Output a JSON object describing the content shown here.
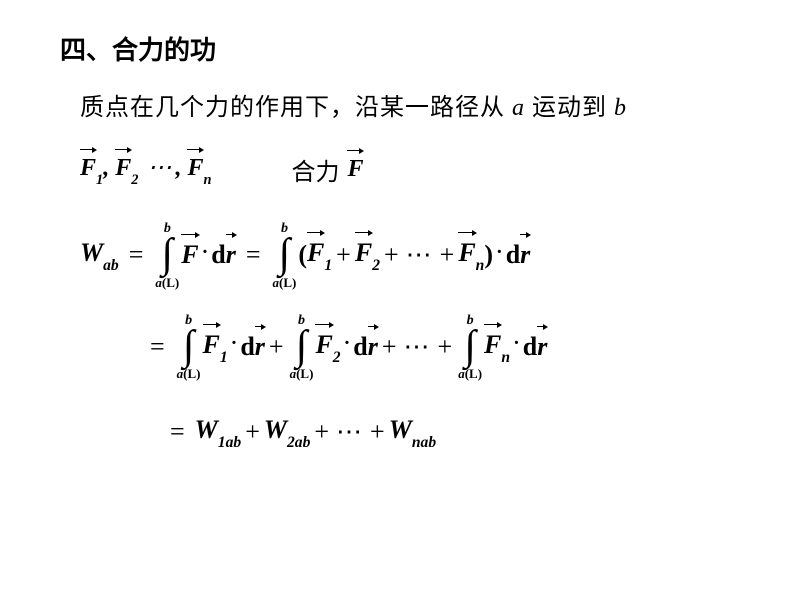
{
  "title": "四、合力的功",
  "intro_pre": "质点在几个力的作用下，沿某一路径从 ",
  "intro_a": "a",
  "intro_mid": " 运动到 ",
  "intro_b": "b",
  "forces": {
    "F": "F",
    "s1": "1",
    "s2": "2",
    "sn": "n",
    "comma": ",",
    "dots": "⋯"
  },
  "heli_label": "合力",
  "W": "W",
  "ab": "ab",
  "eq": "=",
  "plus": "+",
  "lparen": "(",
  "rparen": ")",
  "cdot": "·",
  "d": "d",
  "r": "r",
  "int_upper": "b",
  "int_lower_a": "a",
  "int_lower_L": "(L)",
  "int_sym": "∫",
  "W1": "1",
  "W2": "2",
  "Wn": "n",
  "n_label": "n",
  "one": "1",
  "two": "2"
}
